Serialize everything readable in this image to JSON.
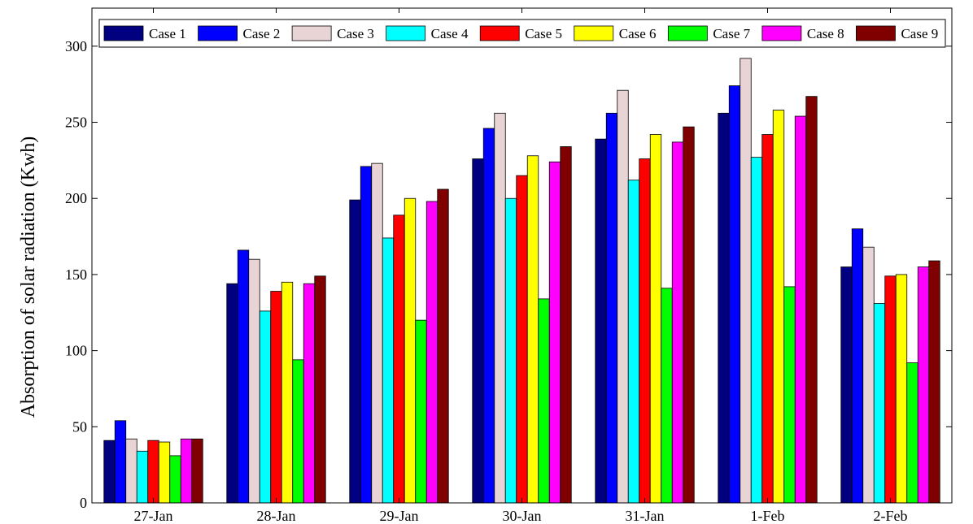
{
  "chart_data": {
    "type": "bar",
    "title": "",
    "xlabel": "",
    "ylabel": "Absorption of solar radiation (Kwh)",
    "ylim": [
      0,
      325
    ],
    "yticks": [
      0,
      50,
      100,
      150,
      200,
      250,
      300
    ],
    "grid": false,
    "legend_position": "top",
    "categories": [
      "27-Jan",
      "28-Jan",
      "29-Jan",
      "30-Jan",
      "31-Jan",
      "1-Feb",
      "2-Feb"
    ],
    "series": [
      {
        "name": "Case 1",
        "color": "#000080",
        "values": [
          41,
          144,
          199,
          226,
          239,
          256,
          155
        ]
      },
      {
        "name": "Case 2",
        "color": "#0000ff",
        "values": [
          54,
          166,
          221,
          246,
          256,
          274,
          180
        ]
      },
      {
        "name": "Case 3",
        "color": "#e8d4d4",
        "values": [
          42,
          160,
          223,
          256,
          271,
          292,
          168
        ]
      },
      {
        "name": "Case 4",
        "color": "#00ffff",
        "values": [
          34,
          126,
          174,
          200,
          212,
          227,
          131
        ]
      },
      {
        "name": "Case 5",
        "color": "#ff0000",
        "values": [
          41,
          139,
          189,
          215,
          226,
          242,
          149
        ]
      },
      {
        "name": "Case 6",
        "color": "#ffff00",
        "values": [
          40,
          145,
          200,
          228,
          242,
          258,
          150
        ]
      },
      {
        "name": "Case 7",
        "color": "#00ff00",
        "values": [
          31,
          94,
          120,
          134,
          141,
          142,
          92
        ]
      },
      {
        "name": "Case 8",
        "color": "#ff00ff",
        "values": [
          42,
          144,
          198,
          224,
          237,
          254,
          155
        ]
      },
      {
        "name": "Case 9",
        "color": "#800000",
        "values": [
          42,
          149,
          206,
          234,
          247,
          267,
          159
        ]
      }
    ]
  }
}
